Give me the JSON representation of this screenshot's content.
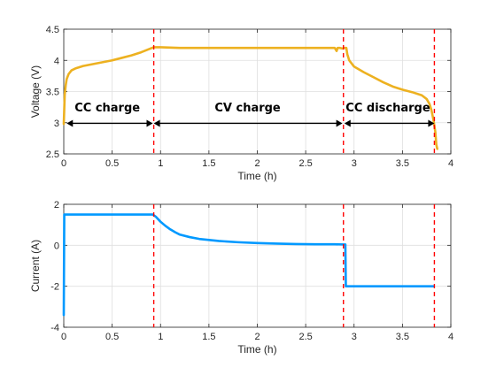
{
  "chart_data": [
    {
      "type": "line",
      "xlabel": "Time (h)",
      "ylabel": "Voltage (V)",
      "xlim": [
        0,
        4
      ],
      "ylim": [
        2.5,
        4.5
      ],
      "xticks": [
        0,
        0.5,
        1,
        1.5,
        2,
        2.5,
        3,
        3.5,
        4
      ],
      "yticks": [
        2.5,
        3,
        3.5,
        4,
        4.5
      ],
      "xtick_labels": [
        "0",
        "0.5",
        "1",
        "1.5",
        "2",
        "2.5",
        "3",
        "3.5",
        "4"
      ],
      "ytick_labels": [
        "2.5",
        "3",
        "3.5",
        "4",
        "4.5"
      ],
      "grid": true,
      "series": [
        {
          "color": "#EDB120",
          "x": [
            0,
            0.01,
            0.02,
            0.03,
            0.05,
            0.08,
            0.12,
            0.2,
            0.3,
            0.4,
            0.5,
            0.6,
            0.7,
            0.8,
            0.88,
            0.93,
            1.0,
            1.2,
            1.5,
            2.0,
            2.5,
            2.8,
            2.82,
            2.83,
            2.85,
            2.88,
            2.9,
            2.92,
            2.93,
            2.95,
            3.0,
            3.1,
            3.2,
            3.3,
            3.4,
            3.5,
            3.6,
            3.7,
            3.75,
            3.78,
            3.8,
            3.82,
            3.84,
            3.85,
            3.86
          ],
          "y": [
            2.98,
            3.45,
            3.6,
            3.7,
            3.78,
            3.84,
            3.87,
            3.91,
            3.94,
            3.97,
            4.0,
            4.04,
            4.08,
            4.13,
            4.18,
            4.21,
            4.21,
            4.2,
            4.2,
            4.2,
            4.2,
            4.2,
            4.15,
            4.2,
            4.2,
            4.19,
            4.2,
            4.2,
            4.1,
            4.0,
            3.9,
            3.81,
            3.73,
            3.65,
            3.58,
            3.53,
            3.49,
            3.44,
            3.38,
            3.3,
            3.2,
            3.05,
            2.85,
            2.65,
            2.58
          ]
        }
      ],
      "vlines": {
        "x": [
          0.93,
          2.89,
          3.83
        ],
        "color": "#FF0000",
        "style": "dashed"
      },
      "annotations": [
        {
          "text": "CC charge",
          "x": 0.45,
          "y": 3.25,
          "arrow": [
            0.03,
            0.92
          ],
          "arrow_y": 2.99
        },
        {
          "text": "CV charge",
          "x": 1.9,
          "y": 3.25,
          "arrow": [
            0.93,
            2.88
          ],
          "arrow_y": 2.99
        },
        {
          "text": "CC discharge",
          "x": 3.35,
          "y": 3.25,
          "arrow": [
            2.9,
            3.83
          ],
          "arrow_y": 2.99
        }
      ]
    },
    {
      "type": "line",
      "xlabel": "Time (h)",
      "ylabel": "Current (A)",
      "xlim": [
        0,
        4
      ],
      "ylim": [
        -4,
        2
      ],
      "xticks": [
        0,
        0.5,
        1,
        1.5,
        2,
        2.5,
        3,
        3.5,
        4
      ],
      "yticks": [
        -4,
        -2,
        0,
        2
      ],
      "xtick_labels": [
        "0",
        "0.5",
        "1",
        "1.5",
        "2",
        "2.5",
        "3",
        "3.5",
        "4"
      ],
      "ytick_labels": [
        "-4",
        "-2",
        "0",
        "2"
      ],
      "grid": true,
      "series": [
        {
          "color": "#0099FF",
          "x": [
            0.0,
            0.005,
            0.01,
            0.5,
            0.92,
            0.95,
            1.0,
            1.05,
            1.1,
            1.15,
            1.2,
            1.3,
            1.4,
            1.5,
            1.6,
            1.8,
            2.0,
            2.2,
            2.4,
            2.6,
            2.8,
            2.9,
            2.91,
            2.915,
            3.0,
            3.5,
            3.82
          ],
          "y": [
            -3.4,
            1.5,
            1.5,
            1.5,
            1.5,
            1.4,
            1.15,
            0.95,
            0.78,
            0.64,
            0.52,
            0.4,
            0.31,
            0.26,
            0.21,
            0.15,
            0.11,
            0.08,
            0.06,
            0.05,
            0.05,
            0.04,
            0.04,
            -2.0,
            -2.0,
            -2.0,
            -2.0
          ]
        }
      ],
      "vlines": {
        "x": [
          0.93,
          2.89,
          3.83
        ],
        "color": "#FF0000",
        "style": "dashed"
      }
    }
  ]
}
